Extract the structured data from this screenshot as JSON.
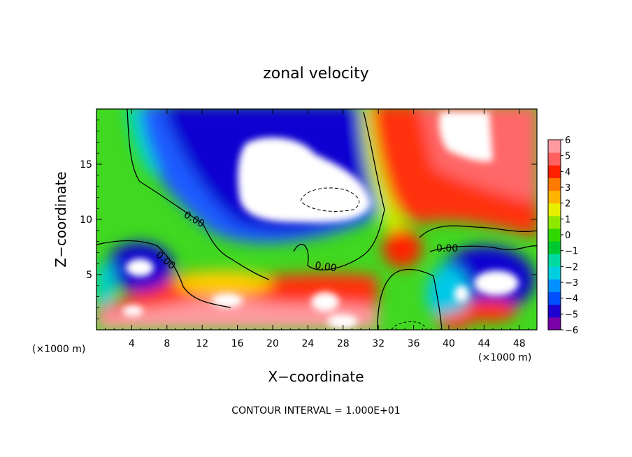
{
  "chart_data": {
    "type": "heatmap",
    "title": "zonal velocity",
    "xlabel": "X−coordinate",
    "ylabel": "Z−coordinate",
    "x_unit_left": "(×1000 m)",
    "x_unit_right": "(×1000 m)",
    "xlim": [
      0,
      50
    ],
    "ylim": [
      0,
      20
    ],
    "x_ticks": [
      "4",
      "8",
      "12",
      "16",
      "20",
      "24",
      "28",
      "32",
      "36",
      "40",
      "44",
      "48"
    ],
    "y_ticks": [
      "5",
      "10",
      "15"
    ],
    "colorbar": {
      "range": [
        -6,
        6
      ],
      "ticks": [
        "6",
        "5",
        "4",
        "3",
        "2",
        "1",
        "0",
        "−1",
        "−2",
        "−3",
        "−4",
        "−5",
        "−6"
      ],
      "colors": [
        "#7a00a8",
        "#1c00d0",
        "#0050ff",
        "#0090ff",
        "#00cfe0",
        "#00d9a0",
        "#00c830",
        "#30d800",
        "#90e800",
        "#e8ee00",
        "#ffb400",
        "#ff7a00",
        "#ff2000",
        "#ff6060",
        "#ff9aa0"
      ]
    },
    "contour_labels": [
      "0.00",
      "0.00",
      "0.00",
      "0.00"
    ],
    "footer": "CONTOUR INTERVAL = 1.000E+01",
    "features": [
      {
        "x": 20.0,
        "z": 13.5,
        "value": -8.0,
        "desc": "strong negative core"
      },
      {
        "x": 24.0,
        "z": 12.2,
        "value": -10.0,
        "desc": "dashed contour center"
      },
      {
        "x": 44.0,
        "z": 15.0,
        "value": 6.5,
        "desc": "positive max upper right"
      },
      {
        "x": 5.5,
        "z": 6.2,
        "value": -7.0,
        "desc": "left negative eddy"
      },
      {
        "x": 42.5,
        "z": 5.5,
        "value": -7.0,
        "desc": "right negative eddy"
      },
      {
        "x": 14.5,
        "z": 2.0,
        "value": 7.0,
        "desc": "near-surface positive"
      }
    ]
  }
}
